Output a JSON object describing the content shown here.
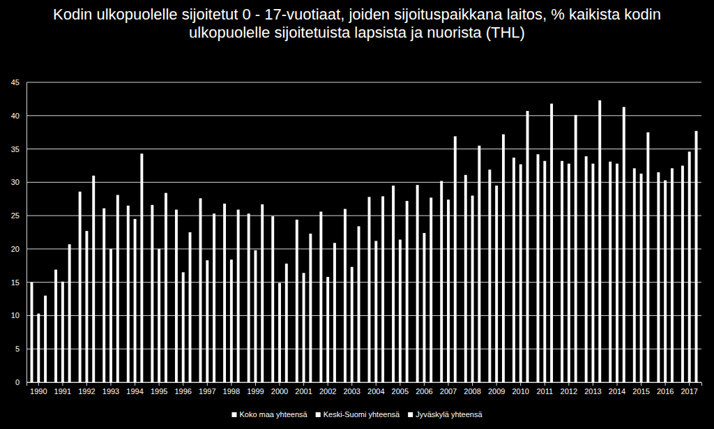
{
  "chart_data": {
    "type": "bar",
    "title": "Kodin ulkopuolelle sijoitetut 0 - 17-vuotiaat, joiden sijoituspaikkana laitos, % kaikista kodin ulkopuolelle sijoitetuista lapsista ja nuorista (THL)",
    "categories": [
      "1990",
      "1991",
      "1992",
      "1993",
      "1994",
      "1995",
      "1996",
      "1997",
      "1998",
      "1999",
      "2000",
      "2001",
      "2002",
      "2003",
      "2004",
      "2005",
      "2006",
      "2007",
      "2008",
      "2009",
      "2010",
      "2011",
      "2012",
      "2013",
      "2014",
      "2015",
      "2016",
      "2017"
    ],
    "series": [
      {
        "name": "Koko maa yhteensä",
        "color": "#ffffff",
        "values": [
          15,
          16.9,
          28.6,
          26.1,
          26.5,
          26.6,
          25.9,
          27.6,
          26.8,
          25.3,
          24.9,
          24.4,
          25.6,
          26,
          27.8,
          29.5,
          29.6,
          30.2,
          31.1,
          31.9,
          33.7,
          34.2,
          33.2,
          33.9,
          33.1,
          32.1,
          31.5,
          32.5
        ]
      },
      {
        "name": "Keski-Suomi yhteensä",
        "color": "#ffffff",
        "values": [
          10.3,
          15.1,
          22.7,
          20,
          24.5,
          20,
          16.5,
          18.3,
          18.4,
          19.8,
          14.9,
          16.4,
          15.8,
          17.3,
          21.2,
          21.4,
          22.4,
          27.4,
          28,
          29.5,
          32.7,
          33.2,
          32.8,
          32.8,
          32.8,
          31.3,
          30.3,
          34.6
        ]
      },
      {
        "name": "Jyväskylä yhteensä",
        "color": "#ffffff",
        "values": [
          13,
          20.7,
          31,
          28.1,
          34.3,
          28.4,
          22.5,
          25.3,
          25.9,
          26.7,
          17.8,
          22.3,
          20.9,
          23.4,
          27.9,
          27.2,
          27.7,
          36.9,
          35.5,
          37.2,
          40.7,
          41.8,
          40.1,
          42.3,
          41.3,
          37.5,
          32.1,
          37.7
        ]
      }
    ],
    "ylim": [
      0,
      45
    ],
    "yticks": [
      0,
      5,
      10,
      15,
      20,
      25,
      30,
      35,
      40,
      45
    ],
    "grid": true,
    "legend": "bottom"
  }
}
